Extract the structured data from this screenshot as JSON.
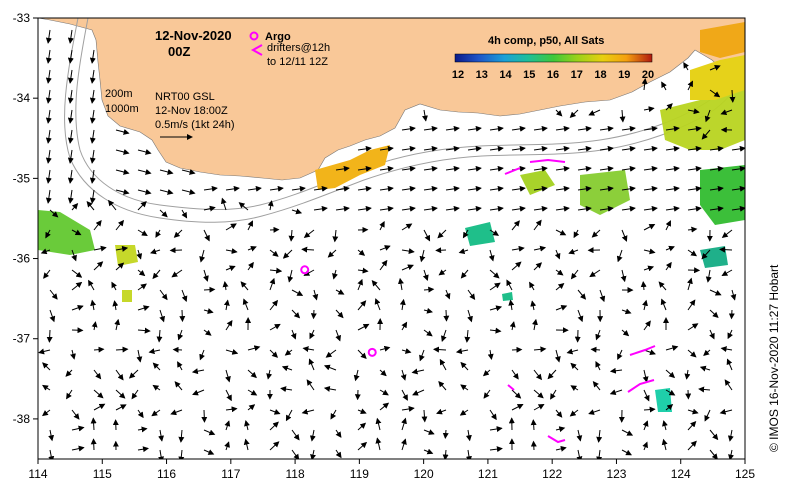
{
  "title": {
    "date": "12-Nov-2020",
    "hour": "00Z"
  },
  "legend": {
    "argo_label": "Argo",
    "drifters_label_1": "drifters@12h",
    "drifters_label_2": "to 12/11 12Z",
    "argo_color": "#ff00ff",
    "drifter_color": "#ff00ff"
  },
  "colorbar": {
    "title": "4h comp, p50, All Sats",
    "ticks": [
      "12",
      "13",
      "14",
      "15",
      "16",
      "17",
      "18",
      "19",
      "20"
    ],
    "colors": [
      "#0a1a8a",
      "#1f55c8",
      "#1aa0d8",
      "#1fbf9a",
      "#3fc83a",
      "#9ad21a",
      "#e8d010",
      "#f5a010",
      "#e65a10",
      "#b01a10"
    ]
  },
  "bathymetry": {
    "label_200": "200m",
    "label_1000": "1000m",
    "contour_color": "#a0a0a0"
  },
  "currents": {
    "model": "NRT00 GSL",
    "time": "12-Nov 18:00Z",
    "scale_label": "0.5m/s (1kt 24h)"
  },
  "land_color": "#f9c898",
  "credit": "© IMOS 16-Nov-2020 11:27 Hobart",
  "axes": {
    "x_ticks": [
      "114",
      "115",
      "116",
      "117",
      "118",
      "119",
      "120",
      "121",
      "122",
      "123",
      "124",
      "125"
    ],
    "y_ticks": [
      "-33",
      "-34",
      "-35",
      "-36",
      "-37",
      "-38"
    ],
    "lon_range": [
      114,
      125
    ],
    "lat_range": [
      -38.5,
      -33
    ]
  },
  "argo_floats": [
    {
      "lon": 118.15,
      "lat": -36.14
    },
    {
      "lon": 119.2,
      "lat": -37.17
    }
  ]
}
